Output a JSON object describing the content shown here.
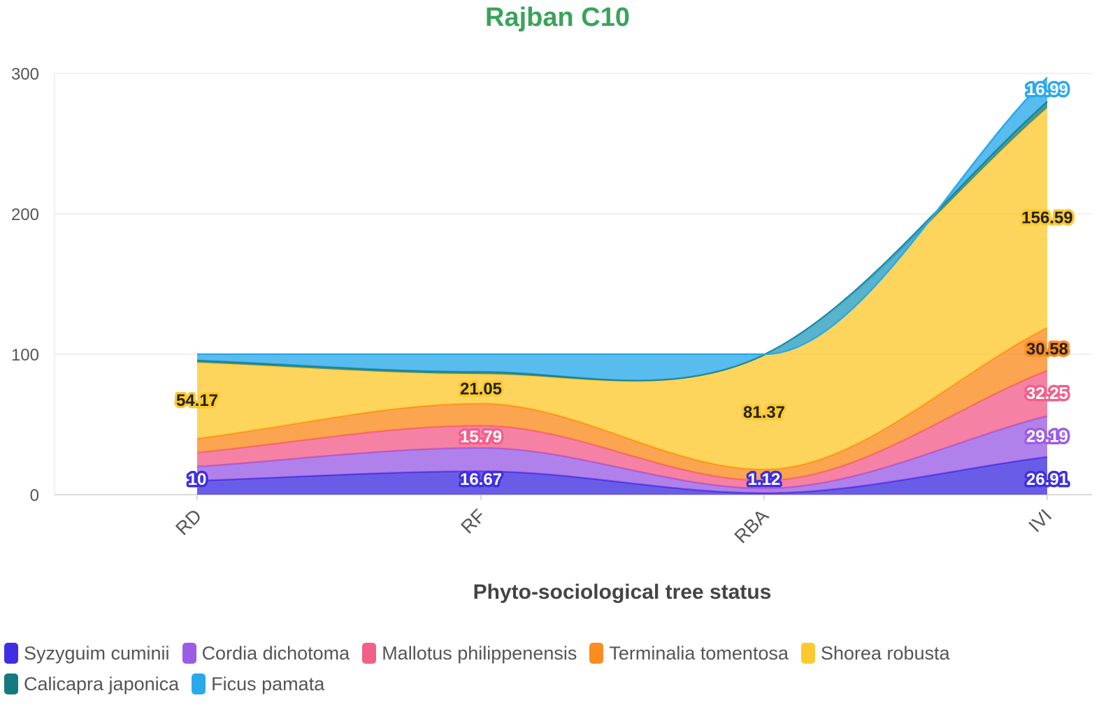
{
  "chart_data": {
    "type": "area",
    "stacked": true,
    "title": "Rajban C10",
    "xlabel": "Phyto-sociological tree status",
    "ylabel": "",
    "ylim": [
      0,
      300
    ],
    "yticks": [
      0,
      100,
      200,
      300
    ],
    "categories": [
      "RD",
      "RF",
      "RBA",
      "IVI"
    ],
    "grid": true,
    "legend_position": "bottom",
    "series": [
      {
        "name": "Syzyguim cuminii",
        "color": "#3f2fe0",
        "values": [
          10,
          16.67,
          1.12,
          26.91
        ],
        "labels": [
          "10",
          "16.67",
          "1.12",
          "26.91"
        ]
      },
      {
        "name": "Cordia dichotoma",
        "color": "#9b5de5",
        "values": [
          10,
          16.67,
          3.37,
          29.19
        ],
        "labels": [
          "",
          "",
          "",
          "29.19"
        ]
      },
      {
        "name": "Mallotus philippenensis",
        "color": "#f25f8a",
        "values": [
          10,
          15.79,
          5.62,
          32.25
        ],
        "labels": [
          "",
          "15.79",
          "",
          "32.25"
        ]
      },
      {
        "name": "Terminalia tomentosa",
        "color": "#fb8c1f",
        "values": [
          10,
          15.79,
          7.87,
          30.58
        ],
        "labels": [
          "",
          "",
          "",
          "30.58"
        ]
      },
      {
        "name": "Shorea robusta",
        "color": "#fdc92f",
        "values": [
          54.17,
          21.05,
          81.37,
          156.59
        ],
        "labels": [
          "54.17",
          "21.05",
          "81.37",
          "156.59"
        ]
      },
      {
        "name": "Calicapra japonica",
        "color": "#137a80",
        "values": [
          1.5,
          1.5,
          0.3,
          4.5
        ],
        "labels": [
          "",
          "",
          "",
          ""
        ]
      },
      {
        "name": "Ficus pamata",
        "color": "#2aa9ea",
        "values": [
          4.33,
          12.53,
          0.35,
          16.99
        ],
        "labels": [
          "",
          "",
          "",
          "16.99"
        ]
      }
    ]
  }
}
